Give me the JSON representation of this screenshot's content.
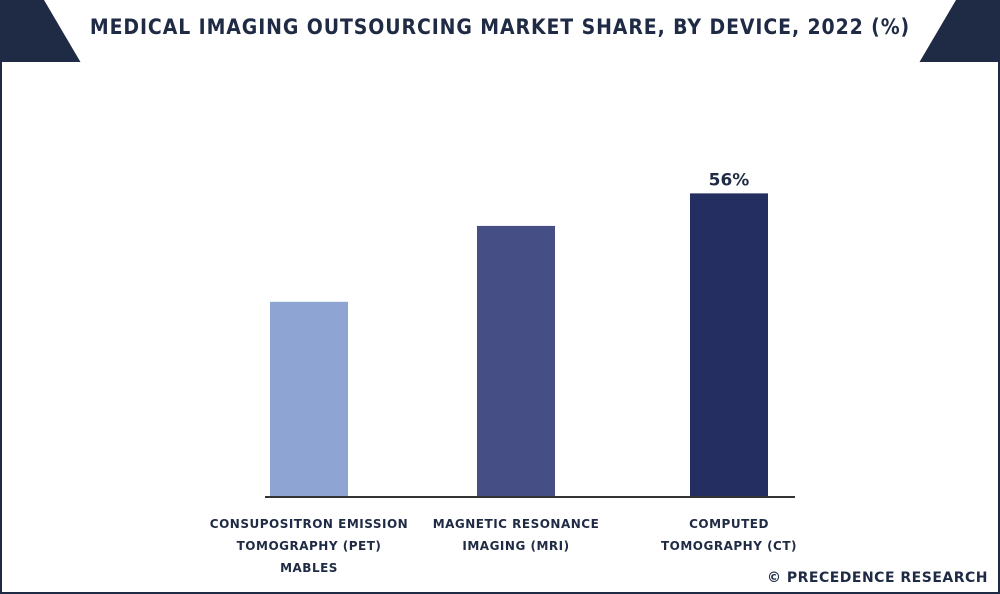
{
  "title": "MEDICAL IMAGING OUTSOURCING MARKET SHARE, BY DEVICE, 2022 (%)",
  "copyright": "© PRECEDENCE RESEARCH",
  "colors": {
    "frame": "#1f2a44",
    "bar1": "#8ea4d2",
    "bar2": "#454f86",
    "bar3": "#242e60",
    "axis": "#333333"
  },
  "chart_data": {
    "type": "bar",
    "categories": [
      [
        "CONSUPOSITRON EMISSION",
        "TOMOGRAPHY (PET)",
        "MABLES"
      ],
      [
        "MAGNETIC RESONANCE",
        "IMAGING (MRI)"
      ],
      [
        "COMPUTED",
        "TOMOGRAPHY (CT)"
      ]
    ],
    "values": [
      36,
      50,
      56
    ],
    "data_labels": [
      "",
      "",
      "56%"
    ],
    "ylim": [
      0,
      64
    ],
    "grid": false,
    "legend": "none"
  }
}
